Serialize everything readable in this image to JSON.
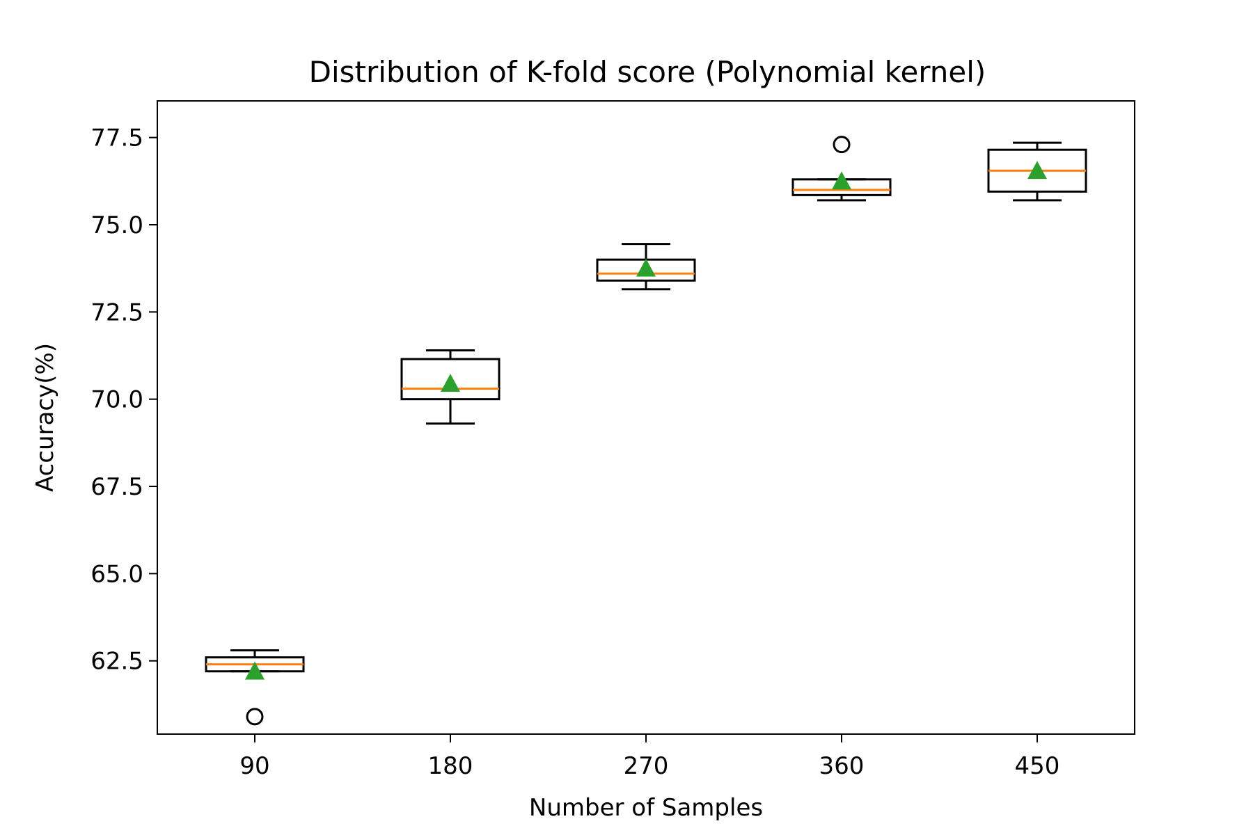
{
  "chart_data": {
    "type": "box",
    "title": "Distribution of K-fold score (Polynomial kernel)",
    "xlabel": "Number of Samples",
    "ylabel": "Accuracy(%)",
    "categories": [
      "90",
      "180",
      "270",
      "360",
      "450"
    ],
    "yticks": [
      "62.5",
      "65.0",
      "67.5",
      "70.0",
      "72.5",
      "75.0",
      "77.5"
    ],
    "ylim": [
      60.4,
      78.55
    ],
    "boxes": [
      {
        "category": "90",
        "whisker_low": 62.2,
        "q1": 62.2,
        "median": 62.4,
        "q3": 62.6,
        "whisker_high": 62.8,
        "mean": 62.2,
        "outliers": [
          60.9
        ]
      },
      {
        "category": "180",
        "whisker_low": 69.3,
        "q1": 70.0,
        "median": 70.3,
        "q3": 71.15,
        "whisker_high": 71.4,
        "mean": 70.45,
        "outliers": []
      },
      {
        "category": "270",
        "whisker_low": 73.15,
        "q1": 73.4,
        "median": 73.6,
        "q3": 74.0,
        "whisker_high": 74.45,
        "mean": 73.75,
        "outliers": []
      },
      {
        "category": "360",
        "whisker_low": 75.7,
        "q1": 75.85,
        "median": 76.0,
        "q3": 76.3,
        "whisker_high": 76.3,
        "mean": 76.25,
        "outliers": [
          77.3
        ]
      },
      {
        "category": "450",
        "whisker_low": 75.7,
        "q1": 75.95,
        "median": 76.55,
        "q3": 77.15,
        "whisker_high": 77.35,
        "mean": 76.55,
        "outliers": []
      }
    ],
    "colors": {
      "box": "#000000",
      "median": "#ff7f0e",
      "mean": "#2ca02c",
      "outlier": "#000000"
    },
    "grid": false,
    "legend": false
  }
}
